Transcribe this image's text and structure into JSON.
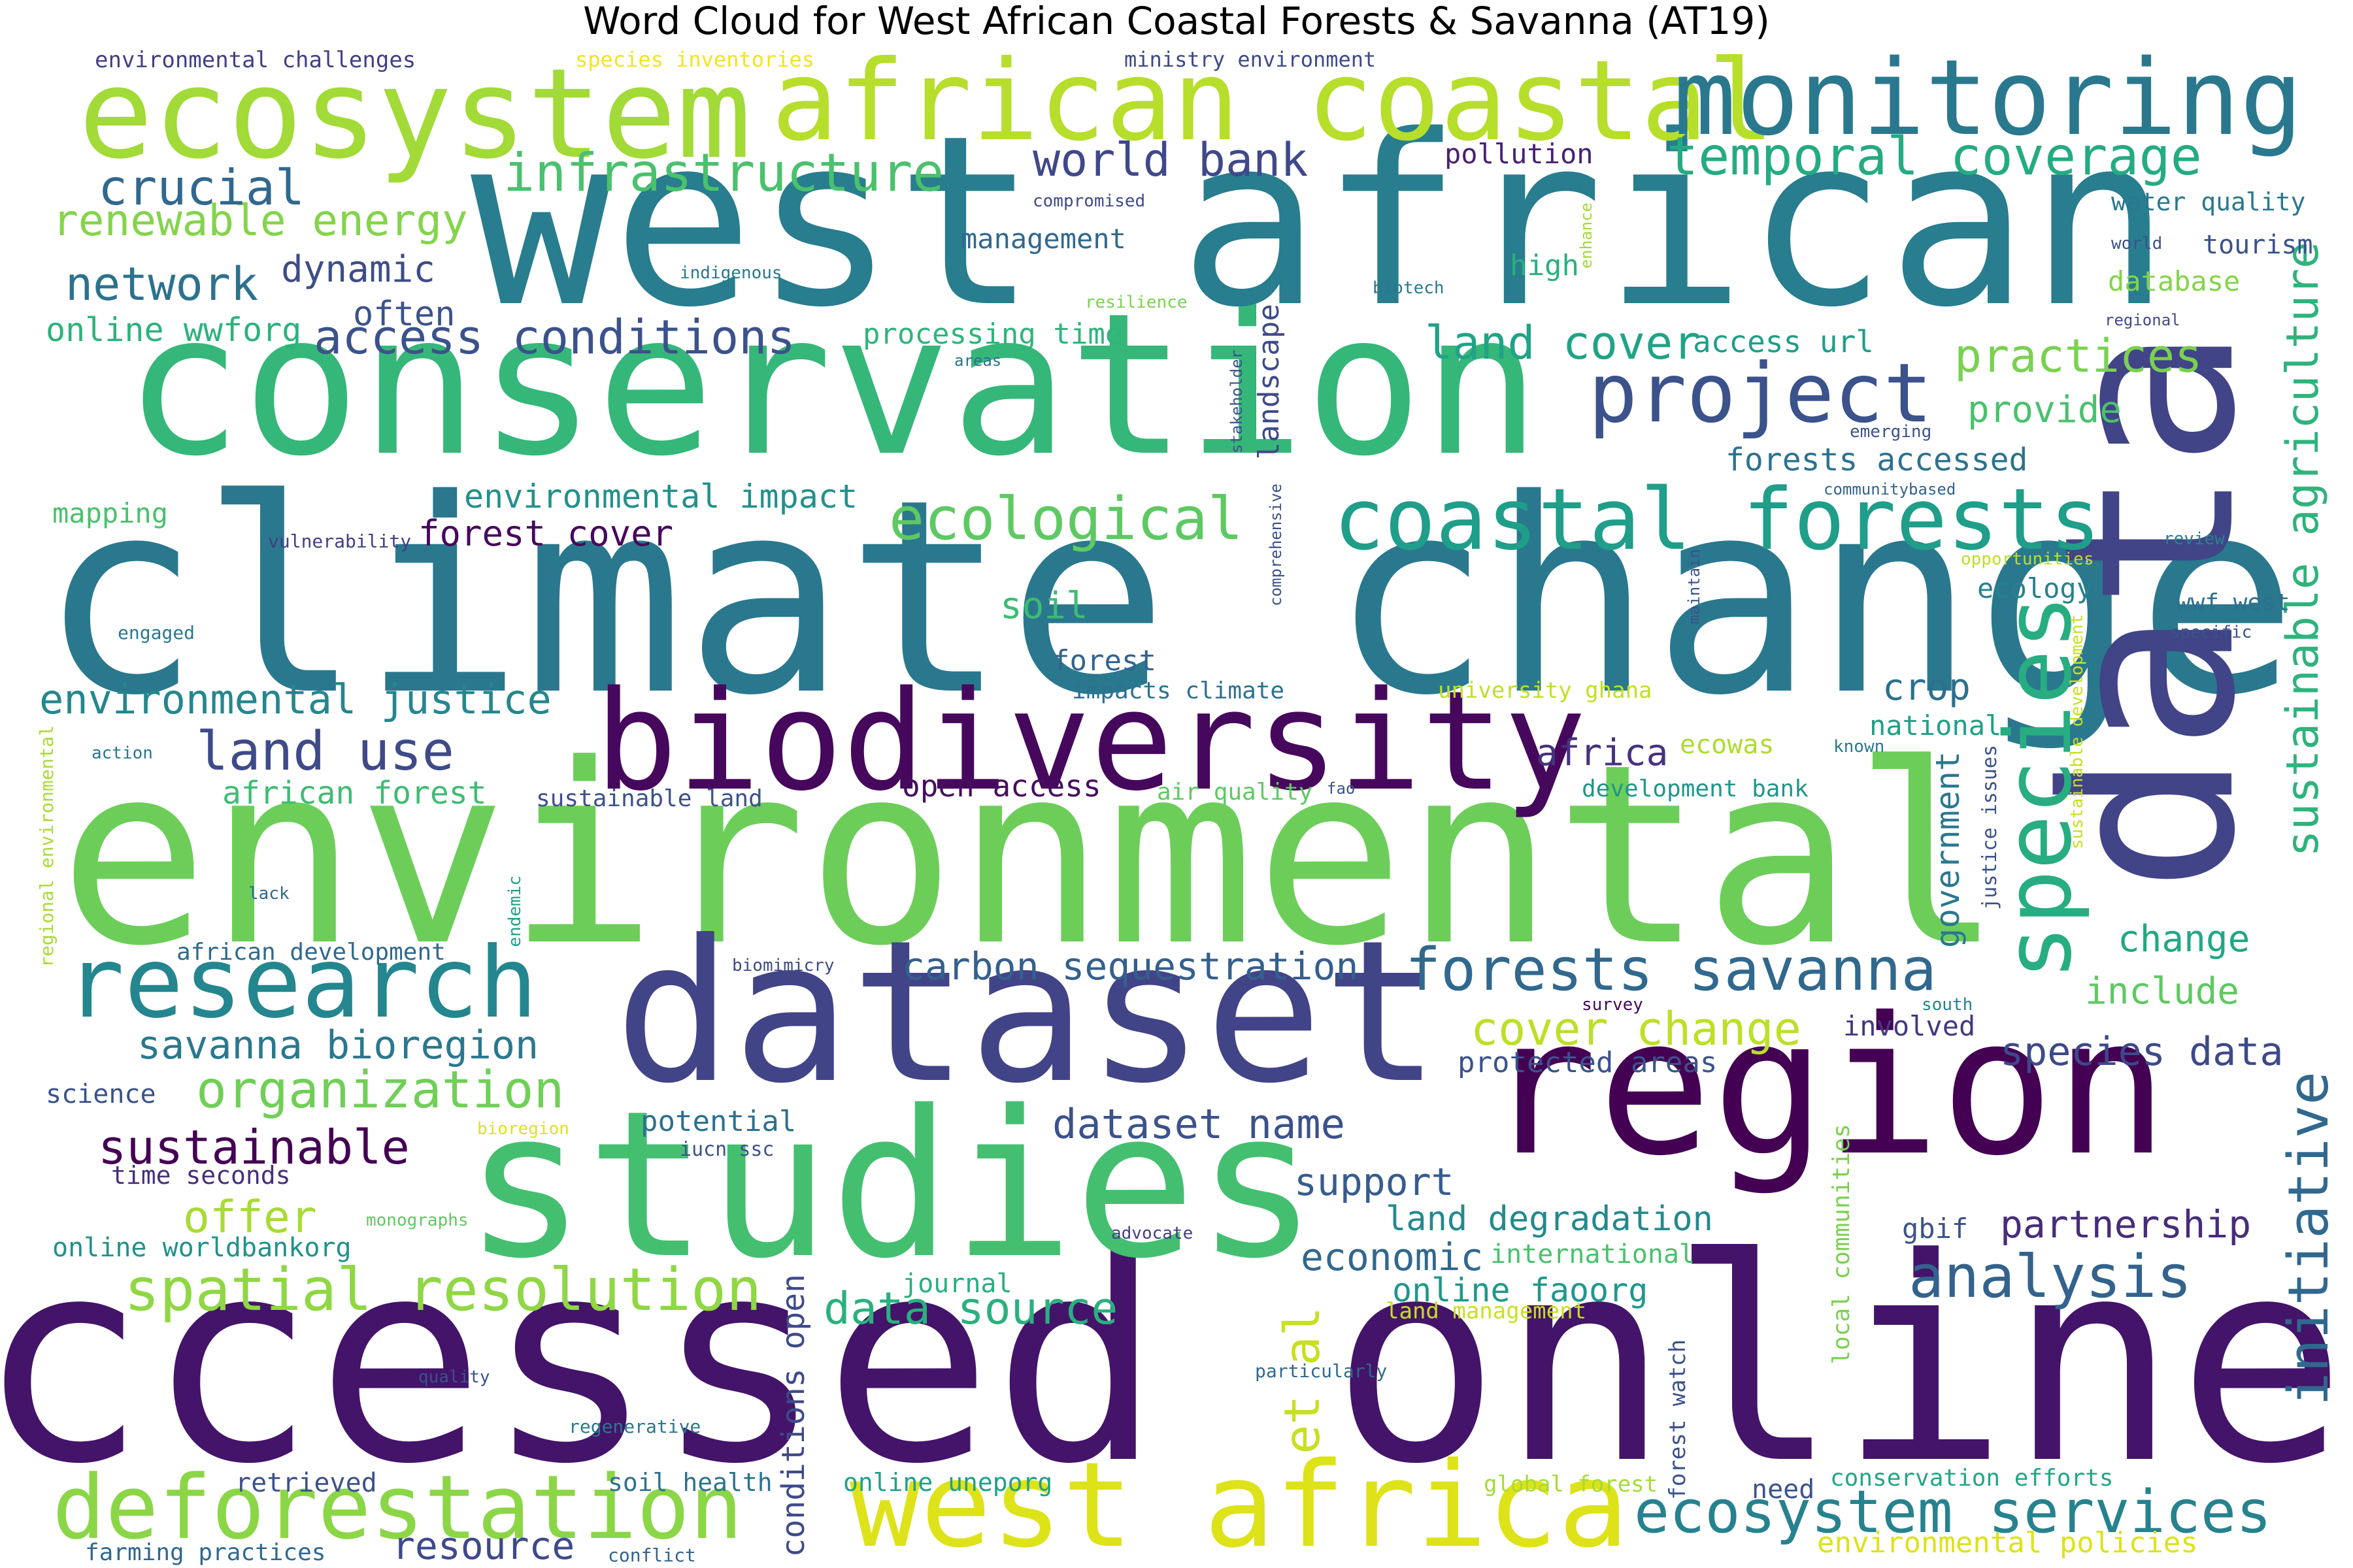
{
  "title": "Word Cloud for West African Coastal Forests & Savanna (AT19)",
  "palette": "viridis",
  "words": [
    {
      "text": "accessed online",
      "color": "#43146a"
    },
    {
      "text": "environmental",
      "color": "#6cce59"
    },
    {
      "text": "climate change",
      "color": "#2a788e"
    },
    {
      "text": "conservation",
      "color": "#35b779"
    },
    {
      "text": "west african",
      "color": "#287d8e"
    },
    {
      "text": "dataset",
      "color": "#414487"
    },
    {
      "text": "studies",
      "color": "#44bf70"
    },
    {
      "text": "region",
      "color": "#440154"
    },
    {
      "text": "data",
      "color": "#414487"
    },
    {
      "text": "ecosystem",
      "color": "#a2da37"
    },
    {
      "text": "biodiversity",
      "color": "#46085c"
    },
    {
      "text": "african coastal",
      "color": "#b6de2b"
    },
    {
      "text": "monitoring",
      "color": "#2a788e"
    },
    {
      "text": "west africa",
      "color": "#dde318"
    },
    {
      "text": "research",
      "color": "#24868e"
    },
    {
      "text": "deforestation",
      "color": "#8bd646"
    },
    {
      "text": "coastal forests",
      "color": "#1f9e89"
    },
    {
      "text": "species",
      "color": "#27ad81"
    },
    {
      "text": "project",
      "color": "#3b528b"
    },
    {
      "text": "analysis",
      "color": "#33638d"
    },
    {
      "text": "ecosystem services",
      "color": "#26828e"
    },
    {
      "text": "sustainable agriculture",
      "color": "#2eb37c"
    },
    {
      "text": "forests savanna",
      "color": "#31688e"
    },
    {
      "text": "spatial resolution",
      "color": "#8fd744"
    },
    {
      "text": "initiative",
      "color": "#31688e"
    },
    {
      "text": "ecological",
      "color": "#5ec962"
    },
    {
      "text": "organization",
      "color": "#70cf57"
    },
    {
      "text": "temporal coverage",
      "color": "#25ab82"
    },
    {
      "text": "infrastructure",
      "color": "#4ac16d"
    },
    {
      "text": "land use",
      "color": "#3e4a89"
    },
    {
      "text": "access conditions",
      "color": "#3b528b"
    },
    {
      "text": "environmental justice",
      "color": "#24878e"
    },
    {
      "text": "renewable energy",
      "color": "#84d44b"
    },
    {
      "text": "crucial",
      "color": "#31688e"
    },
    {
      "text": "network",
      "color": "#2c728e"
    },
    {
      "text": "world bank",
      "color": "#3f4889"
    },
    {
      "text": "practices",
      "color": "#7ad151"
    },
    {
      "text": "land cover",
      "color": "#20a386"
    },
    {
      "text": "cover change",
      "color": "#bddf26"
    },
    {
      "text": "data source",
      "color": "#2ab07f"
    },
    {
      "text": "dataset name",
      "color": "#3b528b"
    },
    {
      "text": "sustainable",
      "color": "#440154"
    },
    {
      "text": "savanna bioregion",
      "color": "#2a788e"
    },
    {
      "text": "carbon sequestration",
      "color": "#355f8d"
    },
    {
      "text": "species data",
      "color": "#3e4989"
    },
    {
      "text": "partnership",
      "color": "#472c7a"
    },
    {
      "text": "resource",
      "color": "#3e4989"
    },
    {
      "text": "offer",
      "color": "#a8db34"
    },
    {
      "text": "support",
      "color": "#365c8d"
    },
    {
      "text": "economic",
      "color": "#31688e"
    },
    {
      "text": "et al",
      "color": "#c8e020"
    },
    {
      "text": "conditions open",
      "color": "#3e4a89"
    },
    {
      "text": "land degradation",
      "color": "#23898e"
    },
    {
      "text": "online faoorg",
      "color": "#1f988b"
    },
    {
      "text": "change",
      "color": "#22a785"
    },
    {
      "text": "include",
      "color": "#5ec962"
    },
    {
      "text": "government",
      "color": "#2a788e"
    },
    {
      "text": "crop",
      "color": "#2d708e"
    },
    {
      "text": "africa",
      "color": "#46327e"
    },
    {
      "text": "dynamic",
      "color": "#3d4d8a"
    },
    {
      "text": "often",
      "color": "#3b528b"
    },
    {
      "text": "forest cover",
      "color": "#46085c"
    },
    {
      "text": "environmental impact",
      "color": "#21918c"
    },
    {
      "text": "landscape",
      "color": "#3e4a89"
    },
    {
      "text": "provide",
      "color": "#4ac16d"
    },
    {
      "text": "forests accessed",
      "color": "#2c728e"
    },
    {
      "text": "soil",
      "color": "#3dbc74"
    },
    {
      "text": "online wwforg",
      "color": "#2db27d"
    },
    {
      "text": "african forest",
      "color": "#3fbc73"
    },
    {
      "text": "open access",
      "color": "#470d60"
    },
    {
      "text": "processing time",
      "color": "#2fb47c"
    },
    {
      "text": "management",
      "color": "#31688e"
    },
    {
      "text": "pollution",
      "color": "#482173"
    },
    {
      "text": "access url",
      "color": "#1f9e89"
    },
    {
      "text": "high",
      "color": "#2ab07f"
    },
    {
      "text": "water quality",
      "color": "#2a788e"
    },
    {
      "text": "tourism",
      "color": "#3b528b"
    },
    {
      "text": "database",
      "color": "#84d44b"
    },
    {
      "text": "ecology",
      "color": "#26828e"
    },
    {
      "text": "wwf west",
      "color": "#2d708e"
    },
    {
      "text": "national",
      "color": "#1fa088"
    },
    {
      "text": "involved",
      "color": "#453882"
    },
    {
      "text": "protected areas",
      "color": "#3b528b"
    },
    {
      "text": "potential",
      "color": "#2d708e"
    },
    {
      "text": "forest",
      "color": "#33638d"
    },
    {
      "text": "impacts climate",
      "color": "#2c728e"
    },
    {
      "text": "university ghana",
      "color": "#c2df23"
    },
    {
      "text": "ecowas",
      "color": "#addc30"
    },
    {
      "text": "development bank",
      "color": "#1f968b"
    },
    {
      "text": "air quality",
      "color": "#5ec962"
    },
    {
      "text": "sustainable land",
      "color": "#3b528b"
    },
    {
      "text": "time seconds",
      "color": "#46307e"
    },
    {
      "text": "online worldbankorg",
      "color": "#21918c"
    },
    {
      "text": "african development",
      "color": "#31688e"
    },
    {
      "text": "mapping",
      "color": "#4ac16d"
    },
    {
      "text": "science",
      "color": "#3b528b"
    },
    {
      "text": "environmental challenges",
      "color": "#433e85"
    },
    {
      "text": "species inventories",
      "color": "#f1e51d"
    },
    {
      "text": "ministry environment",
      "color": "#3e4a89"
    },
    {
      "text": "international",
      "color": "#4ac16d"
    },
    {
      "text": "journal",
      "color": "#29af7f"
    },
    {
      "text": "gbif",
      "color": "#3b528b"
    },
    {
      "text": "land management",
      "color": "#c8e020"
    },
    {
      "text": "local communities",
      "color": "#7ad151"
    },
    {
      "text": "forest watch",
      "color": "#3b528b"
    },
    {
      "text": "retrieved",
      "color": "#3b528b"
    },
    {
      "text": "soil health",
      "color": "#2c728e"
    },
    {
      "text": "online uneporg",
      "color": "#1fa188"
    },
    {
      "text": "global forest",
      "color": "#a5db36"
    },
    {
      "text": "need",
      "color": "#3b528b"
    },
    {
      "text": "conservation efforts",
      "color": "#22a785"
    },
    {
      "text": "environmental policies",
      "color": "#dde318"
    },
    {
      "text": "farming practices",
      "color": "#31688e"
    },
    {
      "text": "conflict",
      "color": "#33638d"
    },
    {
      "text": "regenerative",
      "color": "#2a788e"
    },
    {
      "text": "quality",
      "color": "#3b528b"
    },
    {
      "text": "particularly",
      "color": "#31688e"
    },
    {
      "text": "advocate",
      "color": "#433e85"
    },
    {
      "text": "monographs",
      "color": "#5ec962"
    },
    {
      "text": "bioregion",
      "color": "#dde318"
    },
    {
      "text": "iucn ssc",
      "color": "#3b528b"
    },
    {
      "text": "biomimicry",
      "color": "#3e4a89"
    },
    {
      "text": "survey",
      "color": "#46085c"
    },
    {
      "text": "south",
      "color": "#26828e"
    },
    {
      "text": "endemic",
      "color": "#1fa188"
    },
    {
      "text": "lack",
      "color": "#31688e"
    },
    {
      "text": "regional environmental",
      "color": "#a8db34"
    },
    {
      "text": "action",
      "color": "#2a788e"
    },
    {
      "text": "engaged",
      "color": "#2a788e"
    },
    {
      "text": "vulnerability",
      "color": "#433e85"
    },
    {
      "text": "comprehensive",
      "color": "#3b528b"
    },
    {
      "text": "maintain",
      "color": "#3b528b"
    },
    {
      "text": "stakeholder",
      "color": "#3b528b"
    },
    {
      "text": "indigenous",
      "color": "#2a788e"
    },
    {
      "text": "resilience",
      "color": "#7ad151"
    },
    {
      "text": "areas",
      "color": "#2c728e"
    },
    {
      "text": "compromised",
      "color": "#3e4a89"
    },
    {
      "text": "enhance",
      "color": "#a2da37"
    },
    {
      "text": "biotech",
      "color": "#2a788e"
    },
    {
      "text": "emerging",
      "color": "#3b528b"
    },
    {
      "text": "communitybased",
      "color": "#33638d"
    },
    {
      "text": "opportunities",
      "color": "#bddf26"
    },
    {
      "text": "review",
      "color": "#26828e"
    },
    {
      "text": "specific",
      "color": "#3b528b"
    },
    {
      "text": "world",
      "color": "#3b528b"
    },
    {
      "text": "regional",
      "color": "#3e4a89"
    },
    {
      "text": "known",
      "color": "#2a788e"
    },
    {
      "text": "fao",
      "color": "#3b528b"
    },
    {
      "text": "justice issues",
      "color": "#3b528b"
    },
    {
      "text": "sustainable development",
      "color": "#c8e020"
    }
  ]
}
